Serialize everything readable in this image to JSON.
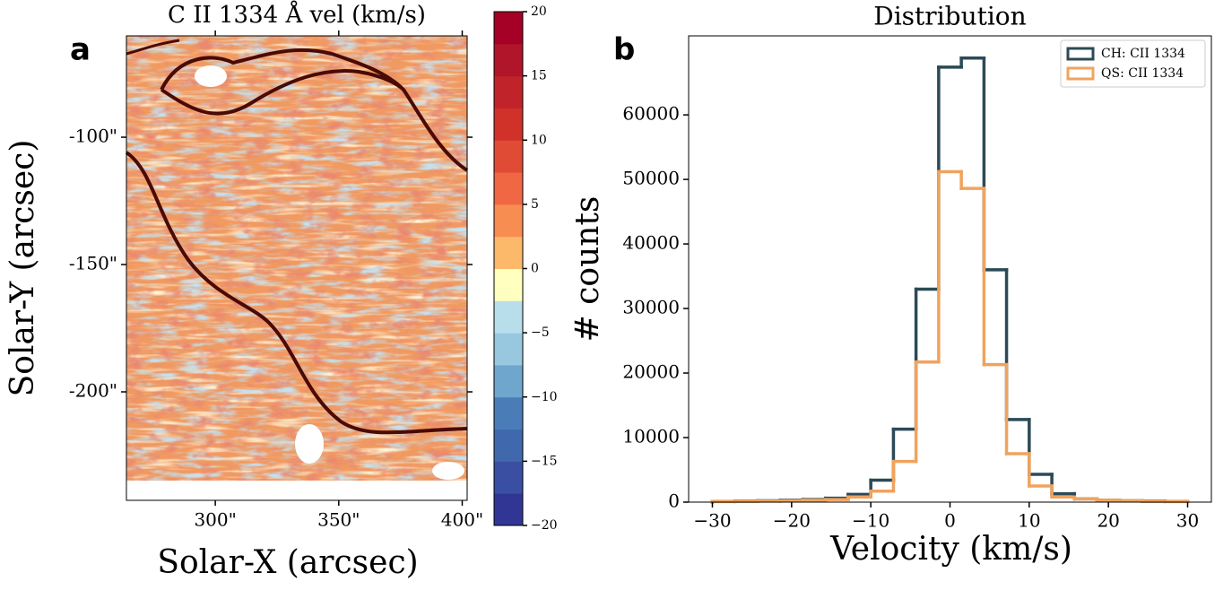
{
  "chart_data": [
    {
      "type": "image",
      "panel_label": "a",
      "title": "C II 1334 Å vel (km/s)",
      "xlabel": "Solar-X (arcsec)",
      "ylabel": "Solar-Y (arcsec)",
      "xlim": [
        264,
        402
      ],
      "ylim": [
        -242.6,
        -60.2
      ],
      "xticks": [
        {
          "value": 300,
          "label": "300\""
        },
        {
          "value": 350,
          "label": "350\""
        },
        {
          "value": 400,
          "label": "400\""
        }
      ],
      "yticks": [
        {
          "value": -100,
          "label": "-100\""
        },
        {
          "value": -150,
          "label": "-150\""
        },
        {
          "value": -200,
          "label": "-200\""
        }
      ],
      "colorbar": {
        "lim": [
          -20,
          20
        ],
        "ticks": [
          20,
          15,
          10,
          5,
          0,
          {
            "value": -5,
            "label": "−5"
          },
          {
            "value": -10,
            "label": "−10"
          },
          {
            "value": -15,
            "label": "−15"
          },
          {
            "value": -20,
            "label": "−20"
          }
        ],
        "colors": [
          "#313695",
          "#3a4fa1",
          "#4069ad",
          "#4a7db8",
          "#6fa6ce",
          "#98c8e0",
          "#b8deeb",
          "#ffffc0",
          "#fdb96a",
          "#f88d52",
          "#f06744",
          "#e04b36",
          "#d0322a",
          "#c0232a",
          "#b0152a",
          "#a50026"
        ]
      }
    },
    {
      "type": "histogram",
      "panel_label": "b",
      "title": "Distribution",
      "xlabel": "Velocity (km/s)",
      "ylabel": "# counts",
      "bins": [
        -30,
        -27.14,
        -24.29,
        -21.43,
        -18.57,
        -15.71,
        -12.86,
        -10,
        -7.14,
        -4.29,
        -1.43,
        1.43,
        4.29,
        7.14,
        10,
        12.86,
        15.71,
        18.57,
        21.43,
        24.29,
        27.14,
        30
      ],
      "series": [
        {
          "name": "CH: CII 1334",
          "color": "#2b4a56",
          "values": [
            100,
            150,
            200,
            300,
            400,
            600,
            1200,
            3400,
            11300,
            33000,
            67400,
            68800,
            36000,
            12800,
            4300,
            1300,
            500,
            300,
            200,
            150,
            100
          ]
        },
        {
          "name": "QS: CII 1334",
          "color": "#f0a35e",
          "values": [
            80,
            120,
            150,
            200,
            300,
            400,
            800,
            1700,
            6300,
            21700,
            51200,
            48600,
            21300,
            7500,
            2500,
            800,
            500,
            300,
            200,
            120,
            80
          ]
        }
      ],
      "xlim": [
        -33,
        33
      ],
      "ylim": [
        0,
        72240
      ],
      "xticks": [
        {
          "value": -30,
          "label": "−30"
        },
        {
          "value": -20,
          "label": "−20"
        },
        {
          "value": -10,
          "label": "−10"
        },
        0,
        10,
        20,
        30
      ],
      "yticks": [
        0,
        10000,
        20000,
        30000,
        40000,
        50000,
        60000
      ],
      "legend": "upper right"
    }
  ]
}
